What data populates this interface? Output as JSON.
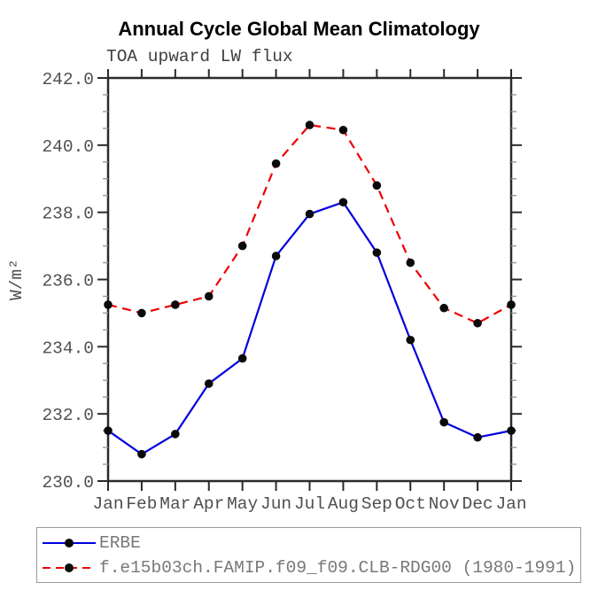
{
  "chart_data": {
    "type": "line",
    "title": "Annual Cycle Global Mean Climatology",
    "subtitle": "TOA upward LW flux",
    "ylabel": "W/m²",
    "xlabel": "",
    "categories": [
      "Jan",
      "Feb",
      "Mar",
      "Apr",
      "May",
      "Jun",
      "Jul",
      "Aug",
      "Sep",
      "Oct",
      "Nov",
      "Dec",
      "Jan"
    ],
    "ylim": [
      230.0,
      242.0
    ],
    "ytick_major_step": 2.0,
    "ytick_minor_step": 0.5,
    "ytick_labels": [
      "230.0",
      "232.0",
      "234.0",
      "236.0",
      "238.0",
      "240.0",
      "242.0"
    ],
    "grid": "off",
    "legend_position": "bottom-left-box",
    "marker_color": "#0a0a0a",
    "axis_color": "#2b2b2b",
    "minor_tick_color": "#999999",
    "tick_label_color": "#4f4f4f",
    "series": [
      {
        "name": "ERBE",
        "color": "#0000dd",
        "style": "solid",
        "values": [
          231.5,
          230.8,
          231.4,
          232.9,
          233.65,
          236.7,
          237.95,
          238.3,
          236.8,
          234.2,
          231.75,
          231.3,
          231.5
        ]
      },
      {
        "name": "f.e15b03ch.FAMIP.f09_f09.CLB-RDG00 (1980-1991)",
        "color": "#ee0000",
        "style": "dashed",
        "values": [
          235.25,
          235.0,
          235.25,
          235.5,
          237.0,
          239.45,
          240.6,
          240.45,
          238.8,
          236.5,
          235.15,
          234.7,
          235.25
        ]
      }
    ]
  }
}
